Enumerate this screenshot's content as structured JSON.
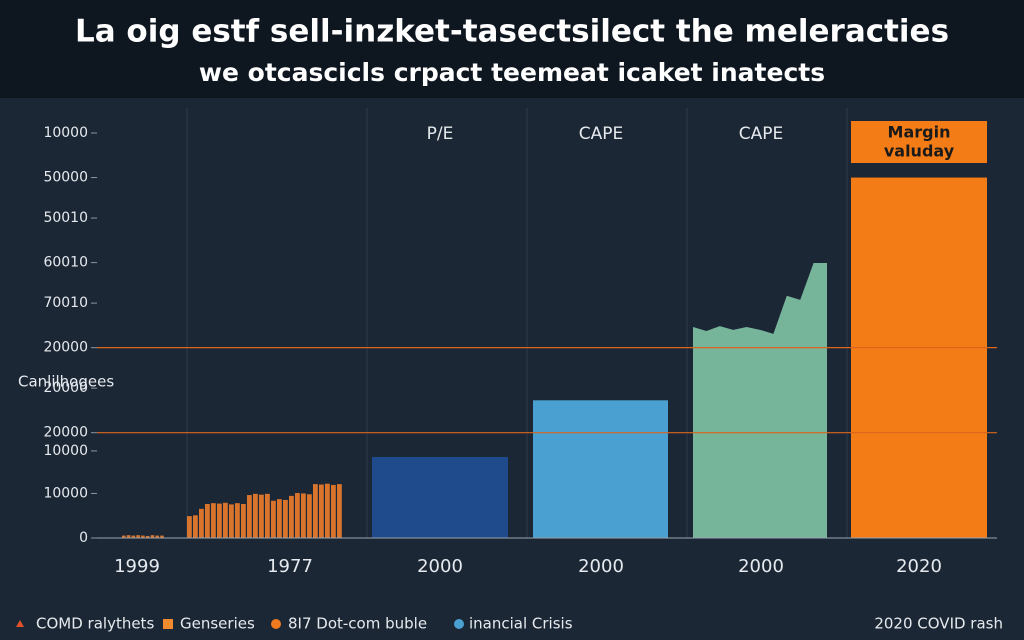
{
  "chart_data": {
    "type": "bar",
    "title": "La oig estf sell-inzket-tasectsilect the meleracties",
    "subtitle": "we otcascicls crpact teemeat icaket inatects",
    "y_label": "Canlilhogees",
    "categories": [
      "1999",
      "1977",
      "2000",
      "2000",
      "2000",
      "2020"
    ],
    "column_labels": [
      null,
      null,
      "P/E",
      "CAPE",
      "CAPE",
      null
    ],
    "ylim": [
      0,
      100000
    ],
    "yticks": [
      {
        "value": 100000,
        "label": "10000"
      },
      {
        "value": 89000,
        "label": "50000"
      },
      {
        "value": 79000,
        "label": "50010"
      },
      {
        "value": 68000,
        "label": "60010"
      },
      {
        "value": 58000,
        "label": "70010"
      },
      {
        "value": 47000,
        "label": "20000"
      },
      {
        "value": 37000,
        "label": "20000"
      },
      {
        "value": 26000,
        "label": "20000"
      },
      {
        "value": 21500,
        "label": "10000"
      },
      {
        "value": 11000,
        "label": "10000"
      },
      0
    ],
    "grid": false,
    "reference_lines": [
      47000,
      26000
    ],
    "reference_color": "#d9661c",
    "columns": [
      {
        "style": "ribs",
        "color": "#d9742c",
        "values": [
          600,
          700,
          600,
          700,
          600,
          500,
          700,
          600,
          600
        ]
      },
      {
        "style": "ribs",
        "color": "#d9742c",
        "values": [
          5400,
          5600,
          7200,
          8400,
          8600,
          8500,
          8700,
          8300,
          8600,
          8400,
          10600,
          10900,
          10700,
          10900,
          9200,
          9600,
          9400,
          10400,
          11100,
          11000,
          10800,
          13300,
          13200,
          13400,
          13100,
          13300
        ]
      },
      {
        "style": "block",
        "color": "#1f4a8c",
        "values": [
          20000
        ]
      },
      {
        "style": "block",
        "color": "#4aa0d0",
        "values": [
          34000
        ]
      },
      {
        "style": "area",
        "color": "#77b59a",
        "values": [
          52100,
          51100,
          52300,
          51400,
          52100,
          51400,
          50400,
          59800,
          58800,
          67900,
          67900
        ]
      },
      {
        "style": "block",
        "color": "#f47c16",
        "values": [
          89000
        ]
      }
    ],
    "annotation_lines": [
      "Margin",
      "valuday"
    ],
    "annotation_color": "#f47c16",
    "legend": [
      {
        "label": "COMD ralythets",
        "marker": "triangle",
        "color": "#e0502a"
      },
      {
        "label": "Genseries",
        "marker": "square",
        "color": "#f08a2e"
      },
      {
        "label": "8I7 Dot-com buble",
        "marker": "circle",
        "color": "#f07a1e"
      },
      {
        "label": "inancial Crisis",
        "marker": "circle",
        "color": "#4aa0d0"
      },
      {
        "label": "2020 COVID rash",
        "marker": "none",
        "color": "#ffffff"
      }
    ]
  }
}
